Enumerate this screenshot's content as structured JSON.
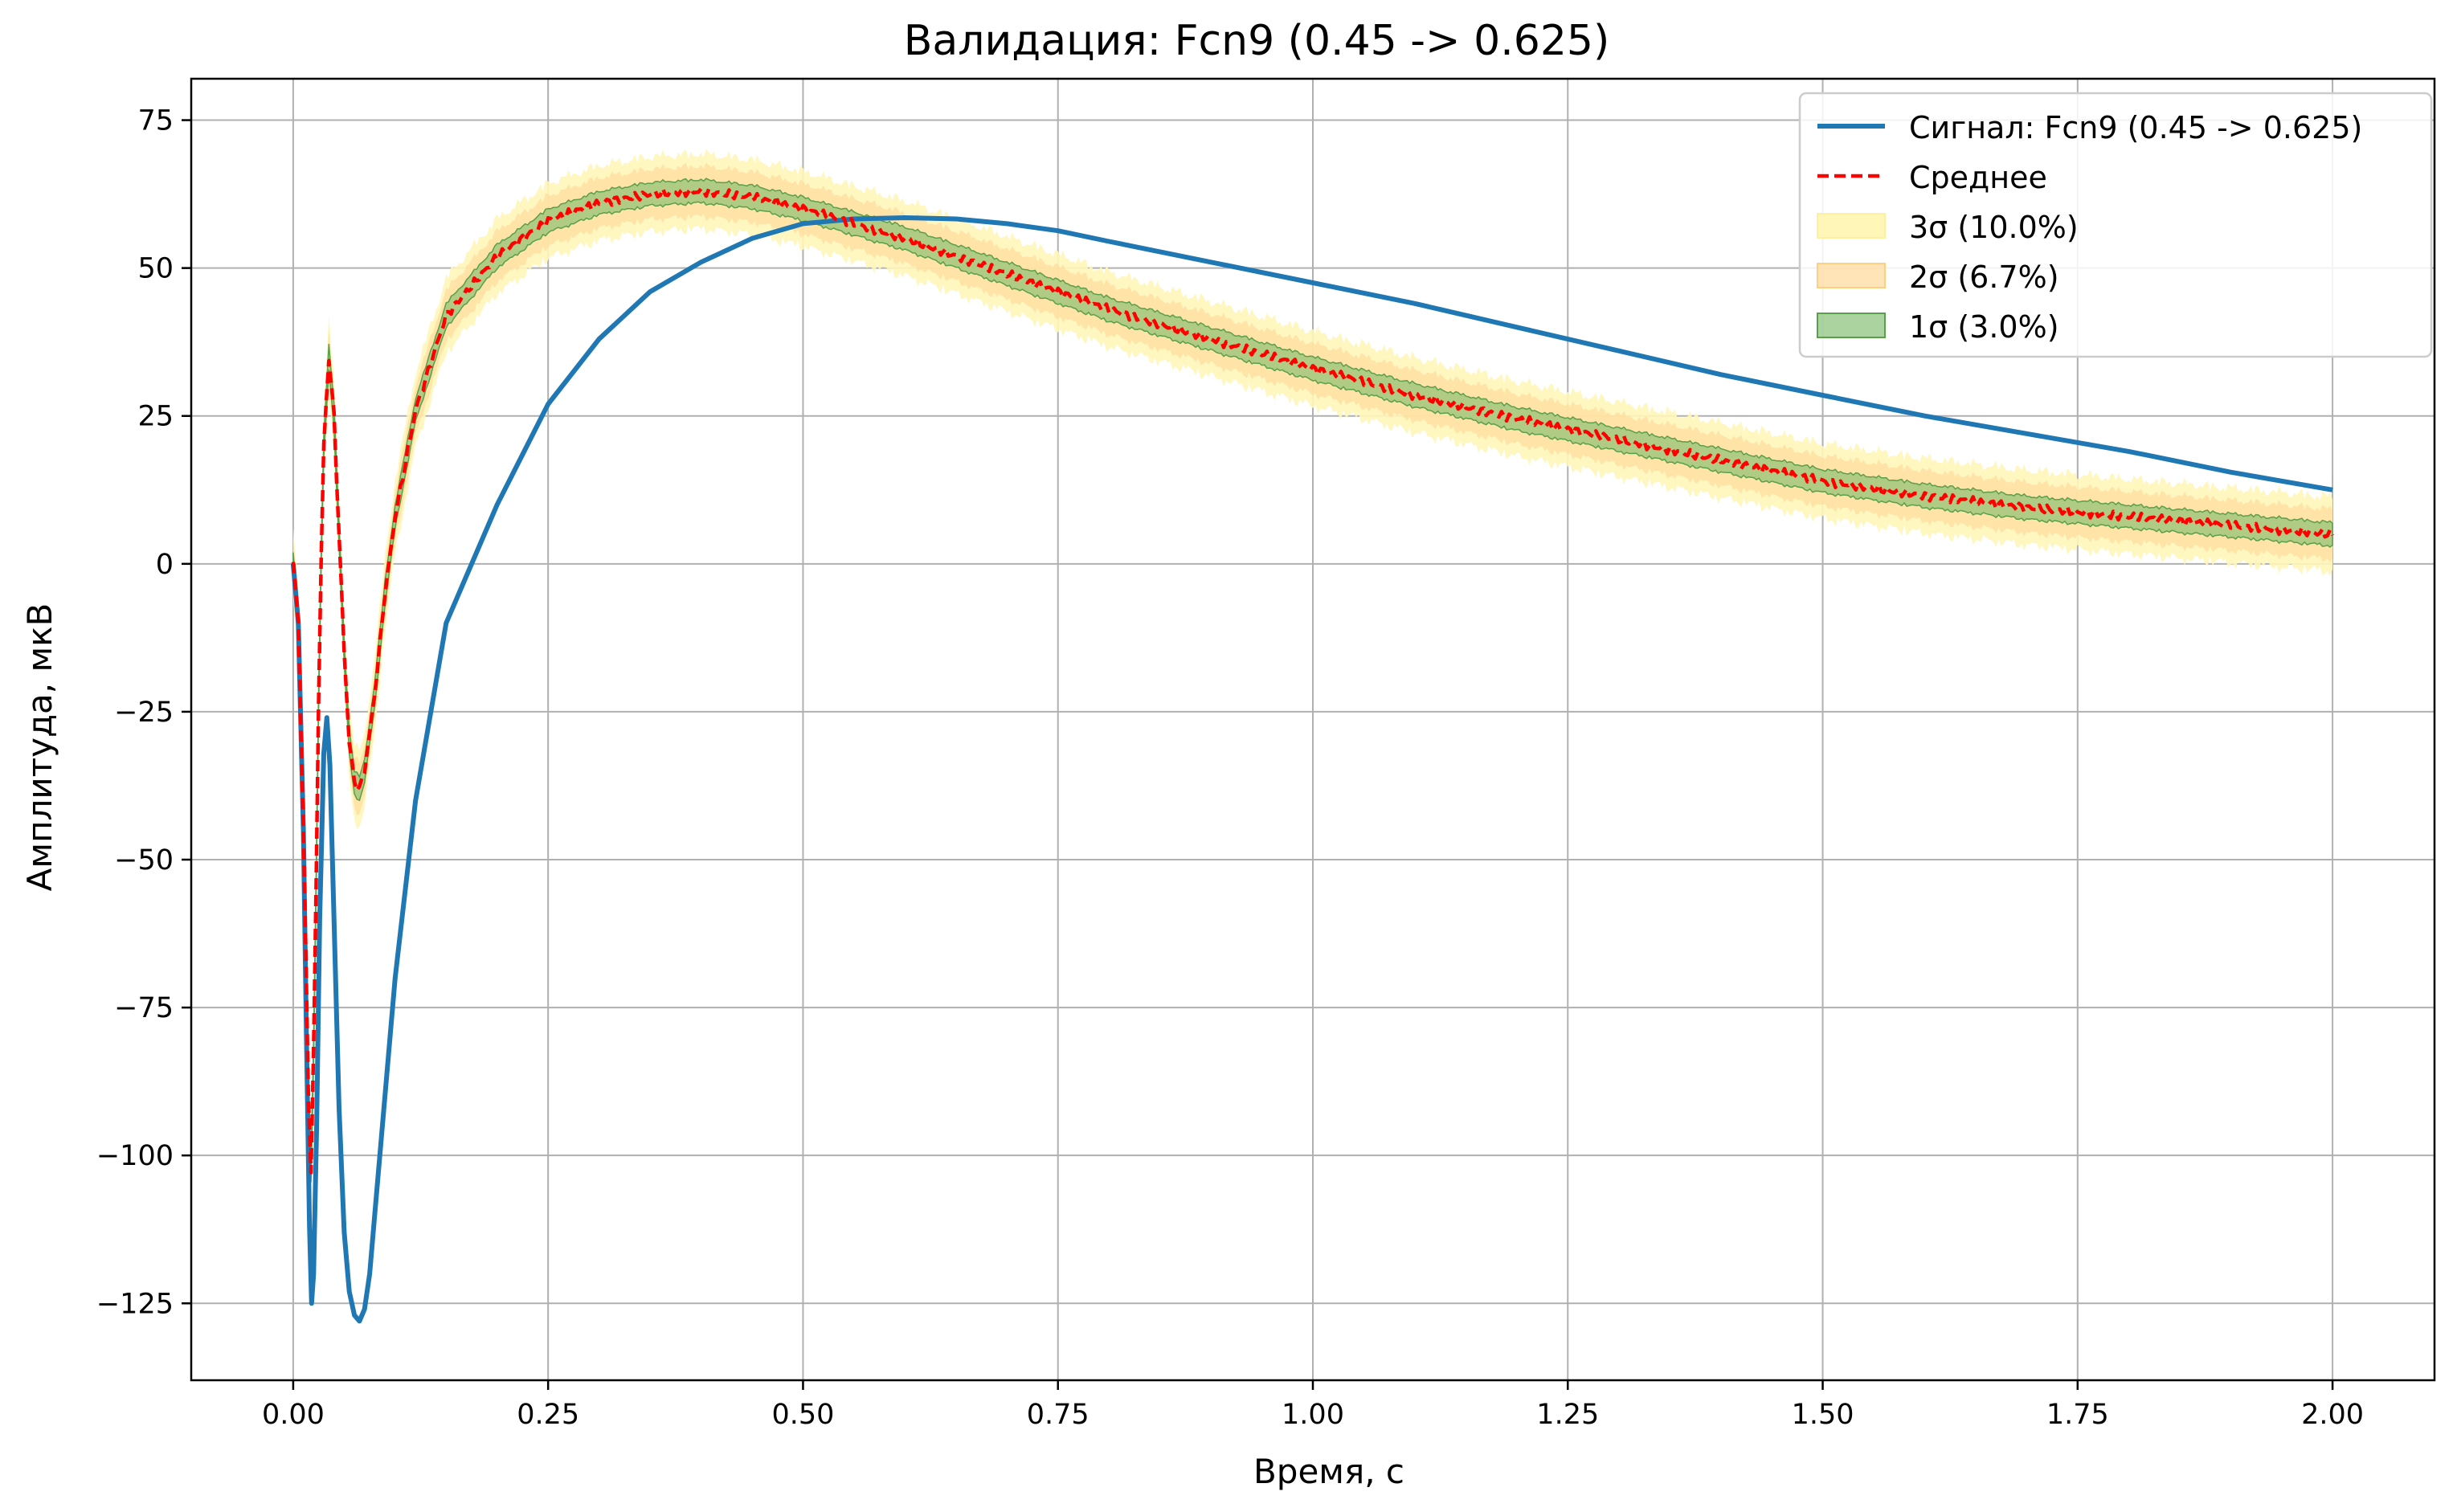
{
  "chart_data": {
    "type": "line",
    "title": "Валидация: Fcn9 (0.45 -> 0.625)",
    "xlabel": "Время, с",
    "ylabel": "Амплитуда, мкВ",
    "xlim": [
      -0.1,
      2.1
    ],
    "ylim": [
      -138,
      82
    ],
    "xticks": [
      0.0,
      0.25,
      0.5,
      0.75,
      1.0,
      1.25,
      1.5,
      1.75,
      2.0
    ],
    "xtick_labels": [
      "0.00",
      "0.25",
      "0.50",
      "0.75",
      "1.00",
      "1.25",
      "1.50",
      "1.75",
      "2.00"
    ],
    "yticks": [
      75,
      50,
      25,
      0,
      -25,
      -50,
      -75,
      -100,
      -125
    ],
    "ytick_labels": [
      "75",
      "50",
      "25",
      "0",
      "−25",
      "−50",
      "−75",
      "−100",
      "−125"
    ],
    "grid": true,
    "legend_position": "top-right",
    "colors": {
      "signal": "#1f77b4",
      "mean": "#ff0000",
      "band3": "#fff6b8",
      "band2": "#ffd89a",
      "band1": "#7cbc6c",
      "band1_edge": "#5a9f4a",
      "grid": "#b0b0b0"
    },
    "series": [
      {
        "name": "Сигнал: Fcn9 (0.45 -> 0.625)",
        "style": "solid",
        "x": [
          0.0,
          0.005,
          0.01,
          0.013,
          0.016,
          0.018,
          0.02,
          0.023,
          0.026,
          0.03,
          0.033,
          0.036,
          0.04,
          0.045,
          0.05,
          0.055,
          0.06,
          0.065,
          0.07,
          0.075,
          0.08,
          0.09,
          0.1,
          0.12,
          0.15,
          0.2,
          0.25,
          0.3,
          0.35,
          0.4,
          0.45,
          0.5,
          0.55,
          0.6,
          0.65,
          0.7,
          0.75,
          0.8,
          0.9,
          1.0,
          1.1,
          1.2,
          1.3,
          1.4,
          1.5,
          1.6,
          1.7,
          1.8,
          1.9,
          2.0
        ],
        "y": [
          0,
          -10,
          -45,
          -80,
          -112,
          -125,
          -120,
          -95,
          -60,
          -32,
          -26,
          -34,
          -60,
          -92,
          -113,
          -123,
          -127,
          -128,
          -126,
          -120,
          -110,
          -90,
          -70,
          -40,
          -10,
          10,
          27,
          38,
          46,
          51,
          55,
          57.5,
          58.3,
          58.5,
          58.3,
          57.5,
          56.3,
          54.5,
          51,
          47.5,
          44,
          40,
          36,
          32,
          28.5,
          25,
          22,
          19,
          15.5,
          12.5
        ]
      },
      {
        "name": "Среднее",
        "style": "dashed",
        "x": [
          0.0,
          0.005,
          0.01,
          0.015,
          0.018,
          0.022,
          0.026,
          0.03,
          0.035,
          0.04,
          0.045,
          0.05,
          0.055,
          0.06,
          0.065,
          0.07,
          0.08,
          0.09,
          0.1,
          0.12,
          0.15,
          0.2,
          0.25,
          0.3,
          0.35,
          0.4,
          0.45,
          0.5,
          0.55,
          0.6,
          0.65,
          0.7,
          0.75,
          0.8,
          0.9,
          1.0,
          1.1,
          1.2,
          1.3,
          1.4,
          1.5,
          1.6,
          1.7,
          1.8,
          1.9,
          2.0
        ],
        "y": [
          0,
          -10,
          -45,
          -90,
          -105,
          -60,
          -10,
          20,
          35,
          25,
          5,
          -15,
          -30,
          -37,
          -38,
          -35,
          -22,
          -5,
          8,
          26,
          42,
          52,
          58,
          61,
          62.5,
          63,
          62,
          60,
          57.5,
          55,
          52,
          49,
          46,
          43,
          38,
          33,
          28.5,
          24.5,
          21,
          17.5,
          14,
          11.5,
          9.5,
          8,
          6.5,
          5
        ]
      }
    ],
    "bands": [
      {
        "name": "3σ (10.0%)",
        "half_width": 5.5
      },
      {
        "name": "2σ (6.7%)",
        "half_width": 3.7
      },
      {
        "name": "1σ (3.0%)",
        "half_width": 1.7
      }
    ]
  }
}
